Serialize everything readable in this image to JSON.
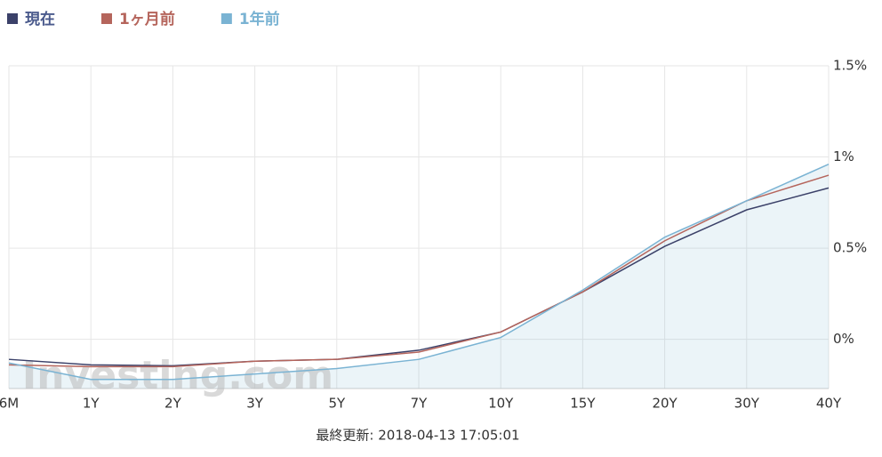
{
  "chart_data": {
    "type": "line",
    "categories": [
      "6M",
      "1Y",
      "2Y",
      "3Y",
      "5Y",
      "7Y",
      "10Y",
      "15Y",
      "20Y",
      "30Y",
      "40Y"
    ],
    "series": [
      {
        "name": "現在",
        "color": "#3b4169",
        "values": [
          -0.11,
          -0.14,
          -0.145,
          -0.12,
          -0.11,
          -0.06,
          0.04,
          0.26,
          0.51,
          0.71,
          0.83
        ]
      },
      {
        "name": "1ヶ月前",
        "color": "#b5655c",
        "values": [
          -0.14,
          -0.15,
          -0.15,
          -0.12,
          -0.11,
          -0.07,
          0.04,
          0.26,
          0.54,
          0.76,
          0.9
        ]
      },
      {
        "name": "1年前",
        "color": "#7ab3d3",
        "values": [
          -0.13,
          -0.22,
          -0.22,
          -0.19,
          -0.16,
          -0.11,
          0.01,
          0.27,
          0.56,
          0.76,
          0.96
        ]
      }
    ],
    "ylim": [
      -0.27,
      1.5
    ],
    "yticks": [
      {
        "value": 0,
        "label": "0%"
      },
      {
        "value": 0.5,
        "label": "0.5%"
      },
      {
        "value": 1,
        "label": "1%"
      },
      {
        "value": 1.5,
        "label": "1.5%"
      }
    ],
    "grid": true,
    "area_series": 2,
    "watermark": "Investing.com",
    "footer": "最終更新: 2018-04-13 17:05:01"
  }
}
